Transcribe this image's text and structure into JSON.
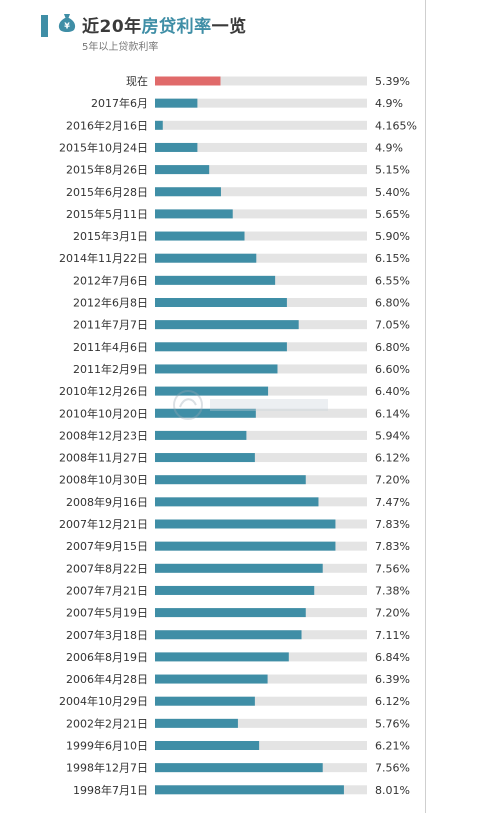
{
  "header": {
    "title_pre": "近20年",
    "title_hl": "房贷利率",
    "title_post": "一览",
    "subtitle": "5年以上贷款利率"
  },
  "colors": {
    "accent": "#3f8ea6",
    "current": "#e06a6a",
    "track": "#e4e4e4",
    "label": "#333333"
  },
  "chart_data": {
    "type": "bar",
    "orientation": "horizontal",
    "title": "近20年房贷利率一览",
    "subtitle": "5年以上贷款利率",
    "xlim": [
      4.0,
      8.5
    ],
    "categories": [
      "现在",
      "2017年6月",
      "2016年2月16日",
      "2015年10月24日",
      "2015年8月26日",
      "2015年6月28日",
      "2015年5月11日",
      "2015年3月1日",
      "2014年11月22日",
      "2012年7月6日",
      "2012年6月8日",
      "2011年7月7日",
      "2011年4月6日",
      "2011年2月9日",
      "2010年12月26日",
      "2010年10月20日",
      "2008年12月23日",
      "2008年11月27日",
      "2008年10月30日",
      "2008年9月16日",
      "2007年12月21日",
      "2007年9月15日",
      "2007年8月22日",
      "2007年7月21日",
      "2007年5月19日",
      "2007年3月18日",
      "2006年8月19日",
      "2006年4月28日",
      "2004年10月29日",
      "2002年2月21日",
      "1999年6月10日",
      "1998年12月7日",
      "1998年7月1日"
    ],
    "values": [
      5.39,
      4.9,
      4.165,
      4.9,
      5.15,
      5.4,
      5.65,
      5.9,
      6.15,
      6.55,
      6.8,
      7.05,
      6.8,
      6.6,
      6.4,
      6.14,
      5.94,
      6.12,
      7.2,
      7.47,
      7.83,
      7.83,
      7.56,
      7.38,
      7.2,
      7.11,
      6.84,
      6.39,
      6.12,
      5.76,
      6.21,
      7.56,
      8.01
    ],
    "value_labels": [
      "5.39%",
      "4.9%",
      "4.165%",
      "4.9%",
      "5.15%",
      "5.40%",
      "5.65%",
      "5.90%",
      "6.15%",
      "6.55%",
      "6.80%",
      "7.05%",
      "6.80%",
      "6.60%",
      "6.40%",
      "6.14%",
      "5.94%",
      "6.12%",
      "7.20%",
      "7.47%",
      "7.83%",
      "7.83%",
      "7.56%",
      "7.38%",
      "7.20%",
      "7.11%",
      "6.84%",
      "6.39%",
      "6.12%",
      "5.76%",
      "6.21%",
      "7.56%",
      "8.01%"
    ],
    "highlight_index": 0
  }
}
